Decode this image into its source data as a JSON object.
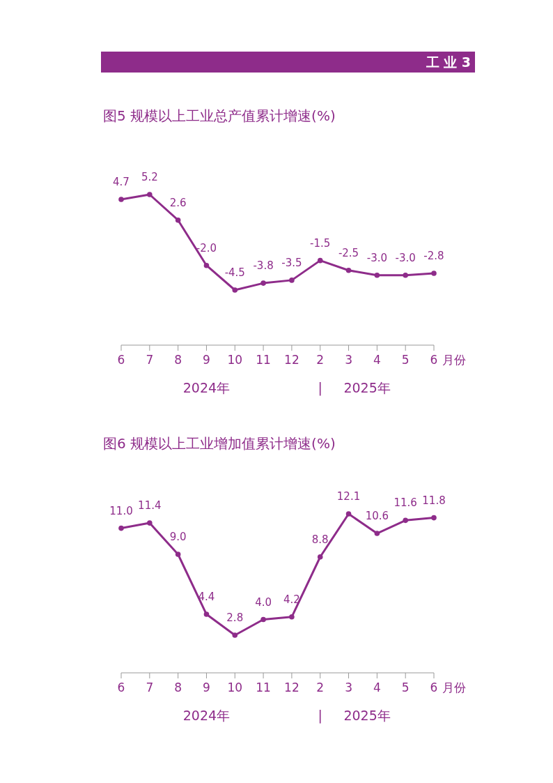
{
  "chart_data": [
    {
      "type": "other",
      "title": "工 业 3",
      "color": "#8e2c8a"
    },
    {
      "type": "line",
      "title": "图5  规模以上工业总产值累计增速(%)",
      "xlabel": "月份",
      "categories": [
        "6",
        "7",
        "8",
        "9",
        "10",
        "11",
        "12",
        "2",
        "3",
        "4",
        "5",
        "6"
      ],
      "series": [
        {
          "color": "#8e2c8a",
          "values": [
            4.7,
            5.2,
            2.6,
            -2.0,
            -4.5,
            -3.8,
            -3.5,
            -1.5,
            -2.5,
            -3.0,
            -3.0,
            -2.8
          ],
          "value_labels": [
            "4.7",
            "5.2",
            "2.6",
            "-2.0",
            "-4.5",
            "-3.8",
            "-3.5",
            "-1.5",
            "-2.5",
            "-3.0",
            "-3.0",
            "-2.8"
          ]
        }
      ],
      "marker": "circle",
      "line_style": "solid",
      "tick_labels": "x",
      "annotations": [
        "2024年",
        "|",
        "2025年"
      ]
    },
    {
      "type": "line",
      "title": "图6  规模以上工业增加值累计增速(%)",
      "xlabel": "月份",
      "categories": [
        "6",
        "7",
        "8",
        "9",
        "10",
        "11",
        "12",
        "2",
        "3",
        "4",
        "5",
        "6"
      ],
      "series": [
        {
          "color": "#8e2c8a",
          "values": [
            11.0,
            11.4,
            9.0,
            4.4,
            2.8,
            4.0,
            4.2,
            8.8,
            12.1,
            10.6,
            11.6,
            11.8
          ],
          "value_labels": [
            "11.0",
            "11.4",
            "9.0",
            "4.4",
            "2.8",
            "4.0",
            "4.2",
            "8.8",
            "12.1",
            "10.6",
            "11.6",
            "11.8"
          ]
        }
      ],
      "marker": "circle",
      "line_style": "solid",
      "tick_labels": "x",
      "annotations": [
        "2024年",
        "|",
        "2025年"
      ]
    }
  ]
}
